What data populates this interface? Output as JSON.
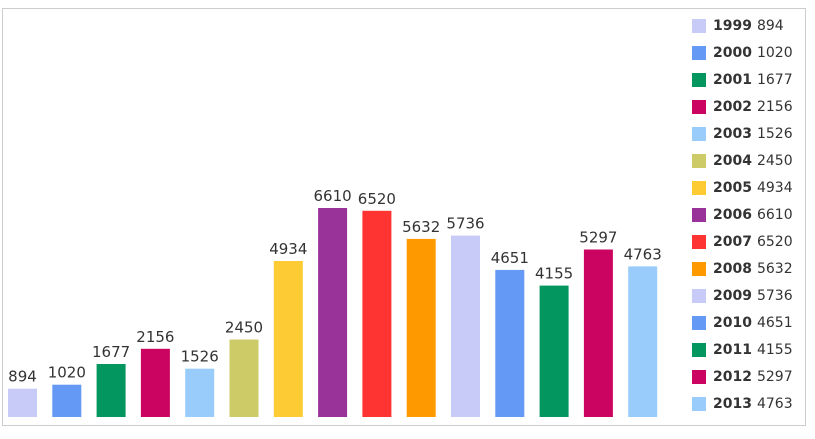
{
  "chart_data": {
    "type": "bar",
    "title": "",
    "xlabel": "",
    "ylabel": "",
    "ylim": [
      0,
      7800
    ],
    "grid": false,
    "legend_position": "right",
    "categories": [
      "1999",
      "2000",
      "2001",
      "2002",
      "2003",
      "2004",
      "2005",
      "2006",
      "2007",
      "2008",
      "2009",
      "2010",
      "2011",
      "2012",
      "2013"
    ],
    "values": [
      894,
      1020,
      1677,
      2156,
      1526,
      2450,
      4934,
      6610,
      6520,
      5632,
      5736,
      4651,
      4155,
      5297,
      4763
    ],
    "value_labels": [
      "894",
      "1020",
      "1677",
      "2156",
      "1526",
      "2450",
      "4934",
      "6610",
      "6520",
      "5632",
      "5736",
      "4651",
      "4155",
      "5297",
      "4763"
    ],
    "colors": [
      "#c8cbf7",
      "#6599f6",
      "#03965e",
      "#cc0461",
      "#99ccfb",
      "#cccb67",
      "#fdcc35",
      "#993299",
      "#fe3433",
      "#fe9900",
      "#c8cbf7",
      "#6599f6",
      "#03965e",
      "#cc0461",
      "#99ccfb"
    ],
    "legend": [
      {
        "year": "1999",
        "value": "894"
      },
      {
        "year": "2000",
        "value": "1020"
      },
      {
        "year": "2001",
        "value": "1677"
      },
      {
        "year": "2002",
        "value": "2156"
      },
      {
        "year": "2003",
        "value": "1526"
      },
      {
        "year": "2004",
        "value": "2450"
      },
      {
        "year": "2005",
        "value": "4934"
      },
      {
        "year": "2006",
        "value": "6610"
      },
      {
        "year": "2007",
        "value": "6520"
      },
      {
        "year": "2008",
        "value": "5632"
      },
      {
        "year": "2009",
        "value": "5736"
      },
      {
        "year": "2010",
        "value": "4651"
      },
      {
        "year": "2011",
        "value": "4155"
      },
      {
        "year": "2012",
        "value": "5297"
      },
      {
        "year": "2013",
        "value": "4763"
      }
    ]
  }
}
